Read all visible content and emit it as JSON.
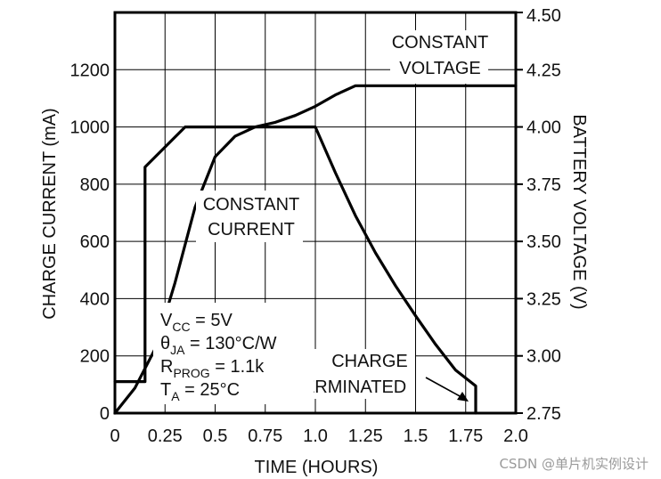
{
  "chart_data": {
    "type": "line",
    "title": "",
    "xlabel": "TIME (HOURS)",
    "ylabel_left": "CHARGE CURRENT (mA)",
    "ylabel_right": "BATTERY VOLTAGE (V)",
    "xlim": [
      0,
      2.0
    ],
    "ylim_left": [
      0,
      1400
    ],
    "ylim_right": [
      2.75,
      4.5
    ],
    "grid": true,
    "x_ticks": [
      0,
      0.25,
      0.5,
      0.75,
      1.0,
      1.25,
      1.5,
      1.75,
      2.0
    ],
    "x_tick_labels": [
      "0",
      "0.25",
      "0.5",
      "0.75",
      "1.0",
      "1.25",
      "1.5",
      "1.75",
      "2.0"
    ],
    "y_left_ticks": [
      0,
      200,
      400,
      600,
      800,
      1000,
      1200
    ],
    "y_left_tick_labels": [
      "0",
      "200",
      "400",
      "600",
      "800",
      "1000",
      "1200"
    ],
    "y_right_ticks": [
      2.75,
      3.0,
      3.25,
      3.5,
      3.75,
      4.0,
      4.25,
      4.5
    ],
    "y_right_tick_labels": [
      "2.75",
      "3.00",
      "3.25",
      "3.50",
      "3.75",
      "4.00",
      "4.25",
      "4.50"
    ],
    "series": [
      {
        "axis": "left",
        "unit": "mA",
        "x": [
          0,
          0.15,
          0.15,
          0.35,
          1.0,
          1.1,
          1.2,
          1.3,
          1.4,
          1.5,
          1.6,
          1.7,
          1.8,
          1.8
        ],
        "y": [
          110,
          110,
          860,
          1000,
          1000,
          840,
          690,
          560,
          445,
          340,
          240,
          150,
          95,
          0
        ]
      },
      {
        "axis": "right",
        "unit": "V",
        "x": [
          0,
          0.1,
          0.2,
          0.3,
          0.4,
          0.5,
          0.6,
          0.7,
          0.8,
          0.9,
          1.0,
          1.1,
          1.2,
          2.0
        ],
        "y": [
          2.75,
          2.86,
          3.03,
          3.32,
          3.65,
          3.87,
          3.96,
          4.0,
          4.02,
          4.05,
          4.09,
          4.14,
          4.18,
          4.18
        ]
      }
    ],
    "annotations": {
      "constant_voltage": [
        "CONSTANT",
        "VOLTAGE"
      ],
      "constant_current": [
        "CONSTANT",
        "CURRENT"
      ],
      "charge_terminated": [
        "CHARGE",
        "TERMINATED"
      ],
      "conditions": [
        {
          "main": "V",
          "sub": "CC",
          "rest": " = 5V"
        },
        {
          "main": "θ",
          "sub": "JA",
          "rest": " = 130°C/W"
        },
        {
          "main": "R",
          "sub": "PROG",
          "rest": " = 1.1k"
        },
        {
          "main": "T",
          "sub": "A",
          "rest": " = 25°C"
        }
      ]
    }
  },
  "watermark": "CSDN @单片机实例设计"
}
